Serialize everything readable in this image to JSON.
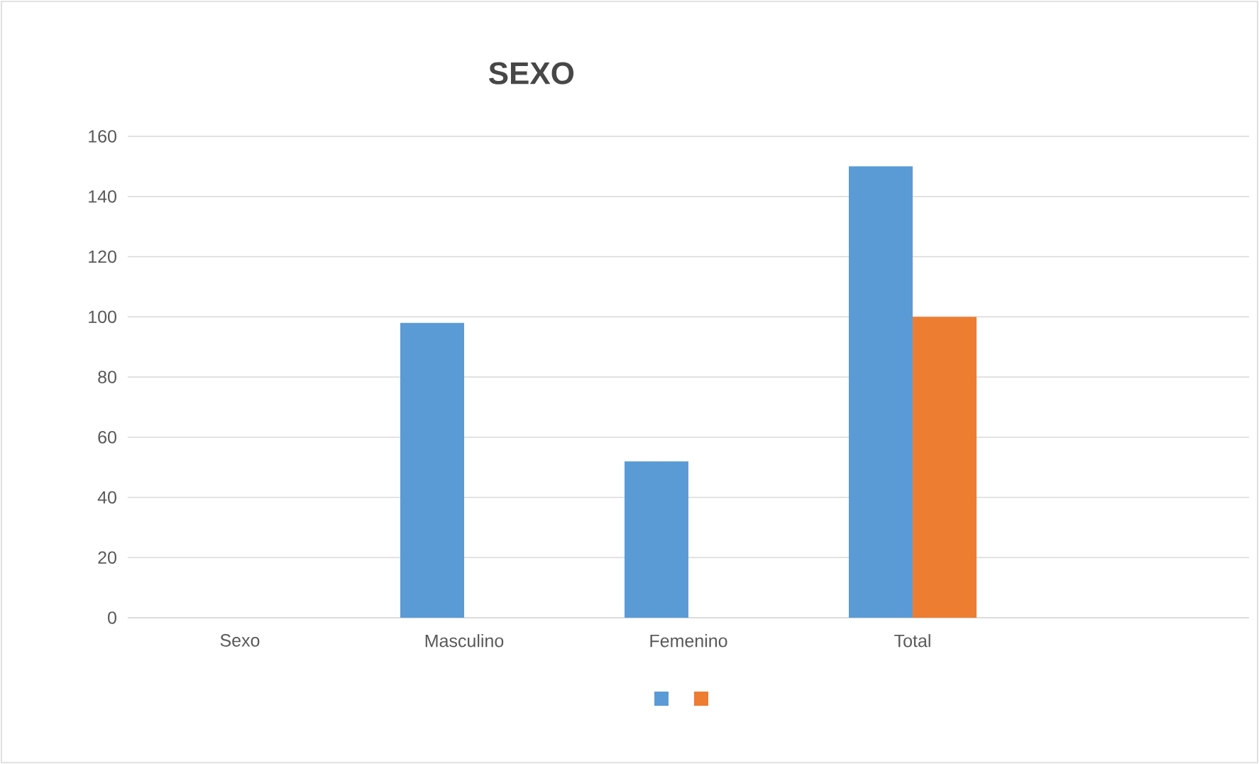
{
  "chart_data": {
    "type": "bar",
    "title": "SEXO",
    "categories": [
      "Sexo",
      "Masculino",
      "Femenino",
      "Total",
      null
    ],
    "series": [
      {
        "color": "#5b9bd5",
        "values": [
          null,
          98,
          52,
          150,
          null
        ]
      },
      {
        "color": "#ed7d31",
        "values": [
          null,
          null,
          null,
          100,
          null
        ]
      }
    ],
    "ylim": [
      0,
      160
    ],
    "yticks": [
      0,
      20,
      40,
      60,
      80,
      100,
      120,
      140,
      160
    ],
    "grid": "y"
  }
}
